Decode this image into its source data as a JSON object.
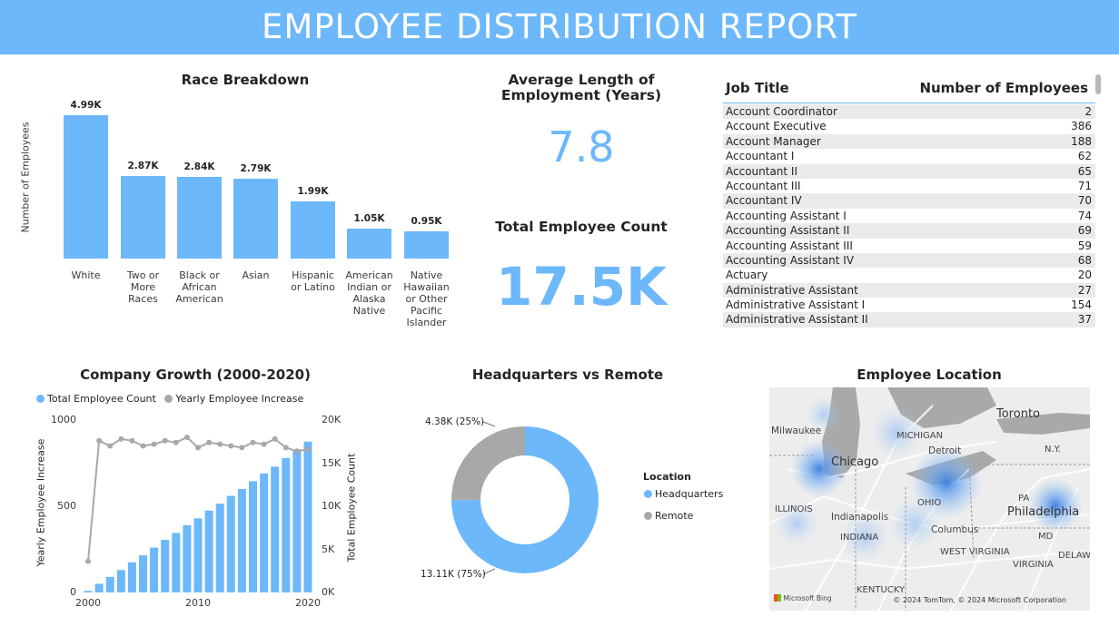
{
  "report_title": "EMPLOYEE DISTRIBUTION REPORT",
  "race": {
    "title": "Race Breakdown",
    "ylabel": "Number of Employees",
    "bars": [
      {
        "label_lines": [
          "White"
        ],
        "value_label": "4.99K"
      },
      {
        "label_lines": [
          "Two or",
          "More",
          "Races"
        ],
        "value_label": "2.87K"
      },
      {
        "label_lines": [
          "Black or",
          "African",
          "American"
        ],
        "value_label": "2.84K"
      },
      {
        "label_lines": [
          "Asian"
        ],
        "value_label": "2.79K"
      },
      {
        "label_lines": [
          "Hispanic",
          "or Latino"
        ],
        "value_label": "1.99K"
      },
      {
        "label_lines": [
          "American",
          "Indian or",
          "Alaska",
          "Native"
        ],
        "value_label": "1.05K"
      },
      {
        "label_lines": [
          "Native",
          "Hawaiian",
          "or Other",
          "Pacific",
          "Islander"
        ],
        "value_label": "0.95K"
      }
    ]
  },
  "kpi": {
    "avg_title": "Average Length of Employment (Years)",
    "avg_value": "7.8",
    "count_title": "Total Employee Count",
    "count_value": "17.5K"
  },
  "table": {
    "col1": "Job Title",
    "col2": "Number of Employees",
    "rows": [
      [
        "Account Coordinator",
        "2"
      ],
      [
        "Account Executive",
        "386"
      ],
      [
        "Account Manager",
        "188"
      ],
      [
        "Accountant I",
        "62"
      ],
      [
        "Accountant II",
        "65"
      ],
      [
        "Accountant III",
        "71"
      ],
      [
        "Accountant IV",
        "70"
      ],
      [
        "Accounting Assistant I",
        "74"
      ],
      [
        "Accounting Assistant II",
        "69"
      ],
      [
        "Accounting Assistant III",
        "59"
      ],
      [
        "Accounting Assistant IV",
        "68"
      ],
      [
        "Actuary",
        "20"
      ],
      [
        "Administrative Assistant",
        "27"
      ],
      [
        "Administrative Assistant I",
        "154"
      ],
      [
        "Administrative Assistant II",
        "37"
      ]
    ]
  },
  "growth": {
    "title": "Company Growth (2000-2020)",
    "legend_count": "Total Employee Count",
    "legend_increase": "Yearly Employee Increase",
    "left_axis_title": "Yearly Employee Increase",
    "right_axis_title": "Total Employee Count",
    "left_ticks": [
      "1000",
      "500",
      "0"
    ],
    "right_ticks": [
      "20K",
      "15K",
      "10K",
      "5K",
      "0K"
    ],
    "x_ticks": [
      "2000",
      "2010",
      "2020"
    ]
  },
  "donut": {
    "title": "Headquarters vs Remote",
    "legend_title": "Location",
    "hq_label": "Headquarters",
    "remote_label": "Remote",
    "remote_value_label": "4.38K (25%)",
    "hq_value_label": "13.11K (75%)"
  },
  "map": {
    "title": "Employee Location",
    "cities": [
      "Milwaukee",
      "Chicago",
      "MICHIGAN",
      "Detroit",
      "Toronto",
      "N.Y.",
      "ILLINOIS",
      "Indianapolis",
      "INDIANA",
      "OHIO",
      "Columbus",
      "PA",
      "Philadelphia",
      "MD",
      "WEST VIRGINIA",
      "VIRGINIA",
      "KENTUCKY",
      "DELAWA"
    ],
    "attribution_left": "Microsoft Bing",
    "attribution_right": "© 2024 TomTom, © 2024 Microsoft Corporation"
  },
  "colors": {
    "accent": "#6cb8fb",
    "gray": "#a8a8a8"
  },
  "chart_data": [
    {
      "type": "bar",
      "title": "Race Breakdown",
      "xlabel": "",
      "ylabel": "Number of Employees",
      "categories": [
        "White",
        "Two or More Races",
        "Black or African American",
        "Asian",
        "Hispanic or Latino",
        "American Indian or Alaska Native",
        "Native Hawaiian or Other Pacific Islander"
      ],
      "values": [
        4990,
        2870,
        2840,
        2790,
        1990,
        1050,
        950
      ]
    },
    {
      "type": "bar",
      "title": "Company Growth (2000-2020)",
      "x": [
        2000,
        2001,
        2002,
        2003,
        2004,
        2005,
        2006,
        2007,
        2008,
        2009,
        2010,
        2011,
        2012,
        2013,
        2014,
        2015,
        2016,
        2017,
        2018,
        2019,
        2020
      ],
      "series": [
        {
          "name": "Total Employee Count",
          "type": "bar",
          "axis": "right",
          "values": [
            180,
            1000,
            1800,
            2600,
            3500,
            4300,
            5200,
            6100,
            6900,
            7800,
            8600,
            9500,
            10300,
            11200,
            12000,
            12900,
            13800,
            14600,
            15600,
            16600,
            17500
          ]
        },
        {
          "name": "Yearly Employee Increase",
          "type": "line",
          "axis": "left",
          "values": [
            180,
            880,
            850,
            890,
            880,
            850,
            860,
            880,
            870,
            900,
            840,
            870,
            860,
            850,
            840,
            870,
            860,
            890,
            840,
            820,
            830
          ]
        }
      ],
      "ylim_left": [
        0,
        1000
      ],
      "ylim_right": [
        0,
        20000
      ]
    },
    {
      "type": "pie",
      "title": "Headquarters vs Remote",
      "categories": [
        "Headquarters",
        "Remote"
      ],
      "values": [
        13110,
        4380
      ]
    }
  ]
}
